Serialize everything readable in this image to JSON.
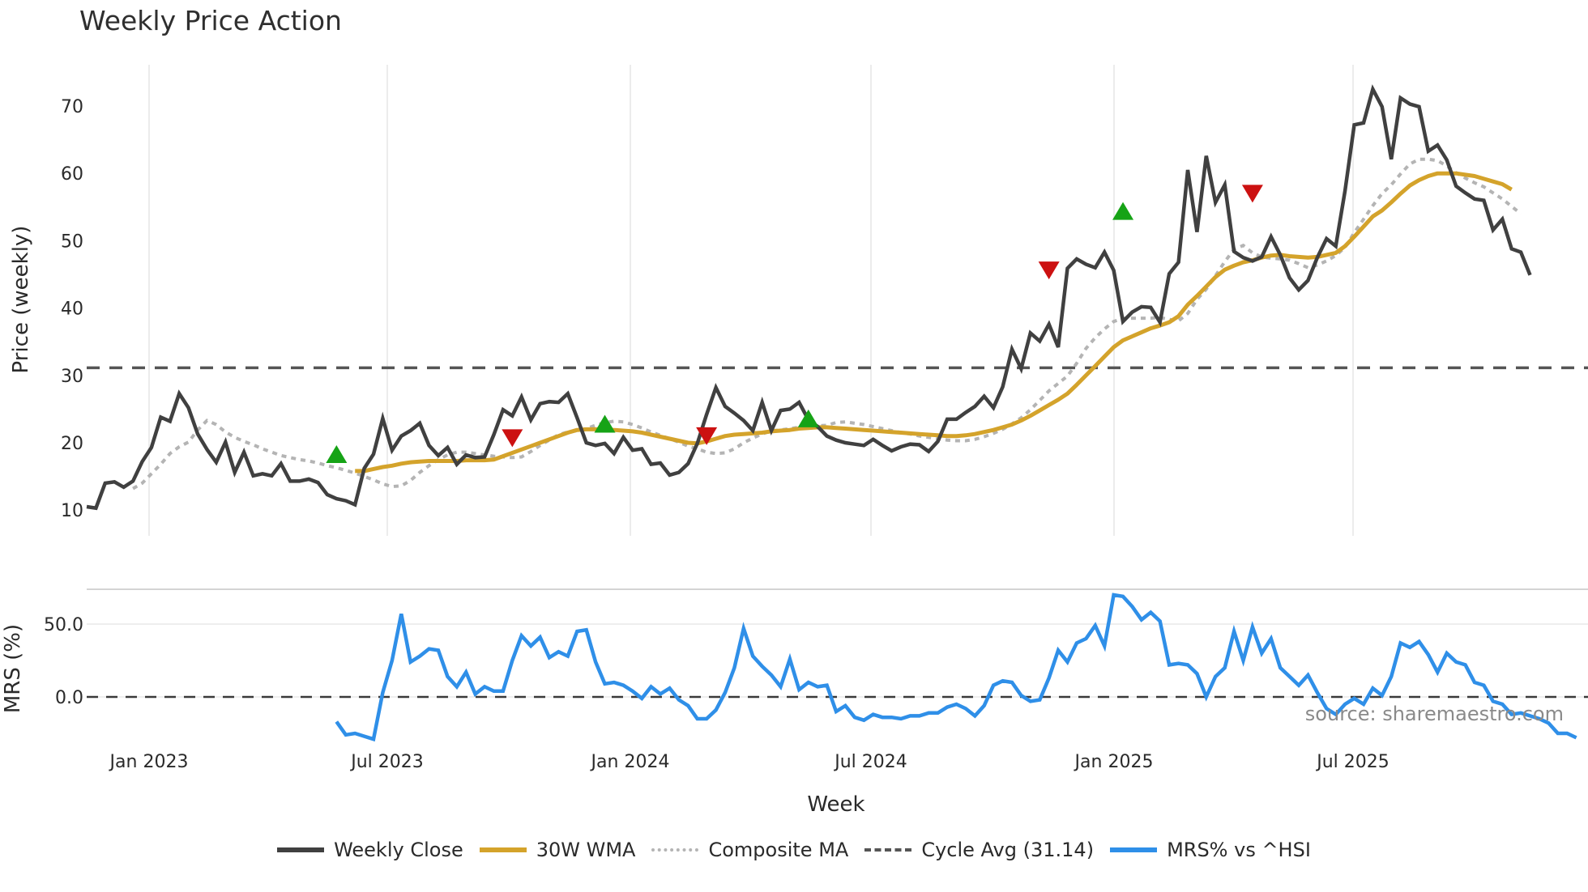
{
  "title": "Weekly Price Action",
  "price_panel": {
    "ylabel": "Price (weekly)",
    "yticks": [
      10,
      20,
      30,
      40,
      50,
      60,
      70
    ]
  },
  "mrs_panel": {
    "ylabel": "MRS (%)",
    "yticks": [
      "0.0",
      "50.0"
    ]
  },
  "xaxis": {
    "label": "Week",
    "ticks": [
      "Jan 2023",
      "Jul 2023",
      "Jan 2024",
      "Jul 2024",
      "Jan 2025",
      "Jul 2025"
    ]
  },
  "source_text": "source: sharemaestro.com",
  "legend": [
    {
      "label": "Weekly Close",
      "style": "sw-close"
    },
    {
      "label": "30W WMA",
      "style": "sw-wma"
    },
    {
      "label": "Composite MA",
      "style": "sw-comp"
    },
    {
      "label": "Cycle Avg (31.14)",
      "style": "sw-cycle"
    },
    {
      "label": "MRS% vs ^HSI",
      "style": "sw-mrs"
    }
  ],
  "colors": {
    "close": "#404040",
    "wma": "#d4a32b",
    "composite": "#b4b4b4",
    "cycle": "#555555",
    "mrs": "#2f8fe8",
    "buy": "#16a316",
    "sell": "#cc1111",
    "grid": "#ececec"
  },
  "chart_data": {
    "type": "line",
    "title": "Weekly Price Action",
    "xlabel": "Week",
    "ylabel": "Price (weekly)",
    "ylim": [
      8.5,
      75
    ],
    "x_tick_labels": [
      "Jan 2023",
      "Jul 2023",
      "Jan 2024",
      "Jul 2024",
      "Jan 2025",
      "Jul 2025"
    ],
    "x_start_week_offset_from_jan2023": -7,
    "grid": true,
    "legend_position": "bottom",
    "cycle_avg": 31.14,
    "series": [
      {
        "name": "Weekly Close",
        "start": 0,
        "values": [
          10.5,
          10.3,
          14,
          14.2,
          13.4,
          14.3,
          17.2,
          19.3,
          23.8,
          23.2,
          27.3,
          25.2,
          21.3,
          19,
          17.1,
          20.1,
          15.6,
          18.6,
          15.1,
          15.4,
          15.1,
          16.9,
          14.3,
          14.3,
          14.6,
          14.1,
          12.3,
          11.7,
          11.4,
          10.8,
          16.2,
          18.3,
          23.6,
          18.9,
          21,
          21.8,
          22.9,
          19.6,
          18.1,
          19.3,
          16.8,
          18.2,
          17.8,
          17.9,
          21.2,
          24.9,
          24,
          26.8,
          23.4,
          25.8,
          26.1,
          26,
          27.3,
          23.7,
          20,
          19.6,
          19.9,
          18.4,
          20.8,
          18.9,
          19.1,
          16.8,
          17,
          15.2,
          15.6,
          16.9,
          19.9,
          24.2,
          28.2,
          25.4,
          24.4,
          23.3,
          21.8,
          26,
          21.8,
          24.8,
          25,
          26,
          23.4,
          22.4,
          21,
          20.4,
          20,
          19.8,
          19.6,
          20.5,
          19.6,
          18.8,
          19.4,
          19.8,
          19.7,
          18.7,
          20.2,
          23.5,
          23.5,
          24.5,
          25.4,
          26.9,
          25.2,
          28.3,
          33.9,
          31,
          36.3,
          35.1,
          37.6,
          34.2,
          45.9,
          47.3,
          46.5,
          46,
          48.3,
          45.6,
          38,
          39.4,
          40.2,
          40.1,
          37.9,
          45.1,
          46.8,
          60.5,
          51.3,
          62.6,
          55.7,
          58.3,
          48.4,
          47.5,
          47,
          47.6,
          50.6,
          47.9,
          44.5,
          42.7,
          44.1,
          47.5,
          50.3,
          49.2,
          57.4,
          67.2,
          67.5,
          72.5,
          69.9,
          62.1,
          71.2,
          70.3,
          69.9,
          63.3,
          64.2,
          62,
          58.1,
          57.1,
          56.2,
          56,
          51.6,
          53.2,
          48.8,
          48.3,
          44.9
        ]
      },
      {
        "name": "30W WMA",
        "start": 29,
        "values": [
          15.8,
          15.8,
          16.1,
          16.4,
          16.6,
          16.9,
          17.1,
          17.2,
          17.3,
          17.3,
          17.3,
          17.3,
          17.4,
          17.4,
          17.4,
          17.5,
          18,
          18.5,
          19,
          19.5,
          20,
          20.5,
          21,
          21.5,
          21.9,
          22,
          22,
          22,
          21.9,
          21.8,
          21.7,
          21.5,
          21.2,
          20.9,
          20.6,
          20.3,
          20,
          19.9,
          20.2,
          20.6,
          21,
          21.2,
          21.3,
          21.4,
          21.5,
          21.7,
          21.8,
          21.9,
          22.1,
          22.2,
          22.3,
          22.3,
          22.2,
          22.1,
          22,
          21.9,
          21.8,
          21.7,
          21.6,
          21.5,
          21.4,
          21.3,
          21.2,
          21.1,
          21,
          21,
          21.1,
          21.3,
          21.6,
          21.9,
          22.3,
          22.7,
          23.3,
          24,
          24.8,
          25.6,
          26.4,
          27.3,
          28.6,
          30,
          31.4,
          32.8,
          34.2,
          35.2,
          35.8,
          36.4,
          37,
          37.4,
          37.9,
          38.8,
          40.5,
          41.8,
          43.2,
          44.6,
          45.7,
          46.3,
          46.8,
          47.1,
          47.5,
          47.8,
          47.9,
          47.7,
          47.6,
          47.5,
          47.6,
          47.9,
          48.2,
          49.2,
          50.6,
          52.1,
          53.6,
          54.5,
          55.7,
          57,
          58.2,
          59,
          59.6,
          60,
          60,
          60,
          59.8,
          59.6,
          59.2,
          58.8,
          58.4,
          57.6
        ]
      },
      {
        "name": "Composite MA",
        "start": 5,
        "values": [
          13.2,
          14,
          15.4,
          16.8,
          18.4,
          19.4,
          20.1,
          21.9,
          23.3,
          22.7,
          21.6,
          20.8,
          20.2,
          19.7,
          19.1,
          18.6,
          18.1,
          17.8,
          17.5,
          17.3,
          17,
          16.6,
          16.3,
          15.9,
          15.5,
          15,
          14.5,
          13.9,
          13.5,
          13.6,
          14.4,
          15.6,
          16.6,
          17.5,
          18.2,
          18.6,
          18.6,
          18.4,
          18.2,
          18,
          17.9,
          17.8,
          17.9,
          18.7,
          19.6,
          20.4,
          21.2,
          21.6,
          21.8,
          22.1,
          22.6,
          23,
          23.2,
          23.1,
          22.7,
          22.2,
          21.6,
          21.1,
          20.6,
          20.1,
          19.5,
          19.1,
          18.6,
          18.4,
          18.5,
          19.1,
          20,
          20.7,
          21.3,
          21.8,
          21.9,
          22.1,
          22.3,
          22.4,
          22.5,
          22.6,
          23,
          23.1,
          22.9,
          22.7,
          22.4,
          22.1,
          21.8,
          21.5,
          21.3,
          21,
          20.8,
          20.6,
          20.4,
          20.3,
          20.3,
          20.5,
          20.9,
          21.4,
          22,
          22.8,
          23.7,
          24.9,
          26.3,
          27.7,
          28.8,
          29.9,
          31.8,
          34,
          35.6,
          36.9,
          38,
          38.5,
          38.5,
          38.5,
          38.5,
          38.6,
          38.3,
          38.1,
          39.2,
          41.3,
          42.8,
          44.8,
          46.9,
          48.7,
          49.3,
          48.2,
          47.6,
          47.4,
          47.3,
          47.1,
          46.6,
          46,
          46.4,
          47,
          47.8,
          49,
          51.2,
          53.2,
          55.2,
          57,
          58.3,
          59.9,
          61.4,
          62.1,
          62.1,
          61.9,
          61.1,
          60.1,
          59.3,
          58.6,
          58,
          57.1,
          56.2,
          55.1,
          54
        ]
      },
      {
        "name": "MRS% vs ^HSI",
        "start": 27,
        "values": [
          -17,
          -26,
          -25,
          -27,
          -29,
          3,
          25,
          57,
          24,
          28,
          33,
          32,
          14,
          7,
          17,
          2,
          7,
          4,
          4,
          25,
          42,
          35,
          41,
          27,
          31,
          28,
          45,
          46,
          24,
          9,
          10,
          8,
          4,
          -1,
          7,
          2,
          6,
          -2,
          -6,
          -15,
          -15,
          -9,
          3,
          20,
          47,
          28,
          21,
          15,
          7,
          26,
          5,
          10,
          7,
          8,
          -10,
          -6,
          -14,
          -16,
          -12,
          -14,
          -14,
          -15,
          -13,
          -13,
          -11,
          -11,
          -7,
          -5,
          -8,
          -13,
          -6,
          8,
          11,
          10,
          1,
          -3,
          -2,
          13,
          32,
          24,
          37,
          40,
          49,
          35,
          70,
          69,
          62,
          53,
          58,
          52,
          22,
          23,
          22,
          16,
          0,
          14,
          20,
          45,
          25,
          48,
          30,
          40,
          20,
          14,
          8,
          15,
          3,
          -8,
          -12,
          -5,
          -1,
          -5,
          6,
          1,
          14,
          37,
          34,
          38,
          29,
          17,
          30,
          24,
          22,
          10,
          8,
          -3,
          -5,
          -12,
          -11,
          -13,
          -15,
          -18,
          -25,
          -25,
          -28
        ]
      },
      {
        "name": "Buy signals",
        "points": [
          [
            27,
            18.2
          ],
          [
            56,
            22.7
          ],
          [
            78,
            23.5
          ],
          [
            112,
            54.3
          ]
        ]
      },
      {
        "name": "Sell signals",
        "points": [
          [
            46,
            20.8
          ],
          [
            67,
            21.1
          ],
          [
            104,
            45.7
          ],
          [
            126,
            57.1
          ]
        ]
      }
    ],
    "mrs_ylim": [
      -35,
      75
    ]
  }
}
